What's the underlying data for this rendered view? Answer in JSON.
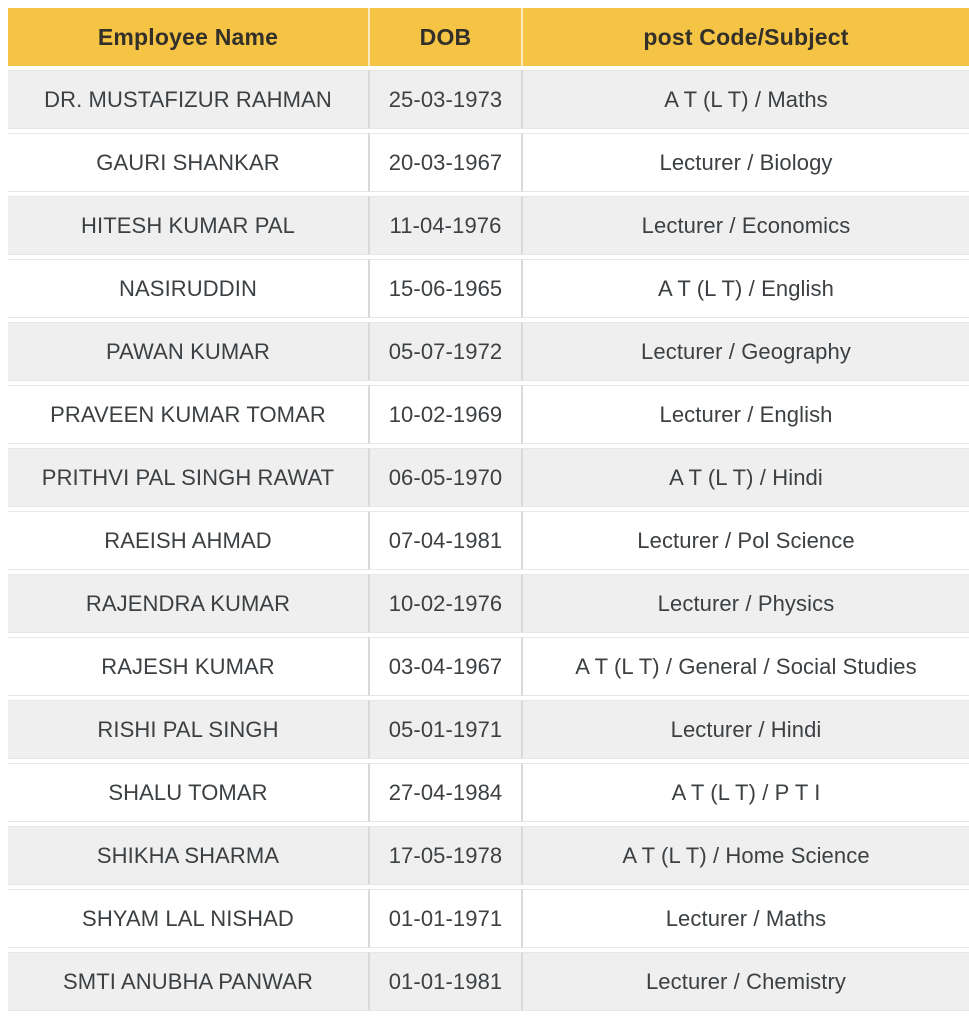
{
  "colors": {
    "header_bg": "#F6C445",
    "header_text": "#33302A",
    "body_text": "#3C4043",
    "row_bg": "#FFFFFF",
    "row_alt_bg": "#EFEFEF",
    "divider": "#D9D9D9"
  },
  "table": {
    "columns": [
      {
        "key": "name",
        "label": "Employee Name"
      },
      {
        "key": "dob",
        "label": "DOB"
      },
      {
        "key": "post",
        "label": "post Code/Subject"
      }
    ],
    "rows": [
      {
        "name": "DR. MUSTAFIZUR RAHMAN",
        "dob": "25-03-1973",
        "post": "A T (L T) / Maths"
      },
      {
        "name": "GAURI SHANKAR",
        "dob": "20-03-1967",
        "post": "Lecturer / Biology"
      },
      {
        "name": "HITESH KUMAR PAL",
        "dob": "11-04-1976",
        "post": "Lecturer / Economics"
      },
      {
        "name": "NASIRUDDIN",
        "dob": "15-06-1965",
        "post": "A T (L T) / English"
      },
      {
        "name": "PAWAN KUMAR",
        "dob": "05-07-1972",
        "post": "Lecturer / Geography"
      },
      {
        "name": "PRAVEEN KUMAR TOMAR",
        "dob": "10-02-1969",
        "post": "Lecturer / English"
      },
      {
        "name": "PRITHVI PAL SINGH RAWAT",
        "dob": "06-05-1970",
        "post": "A T (L T) / Hindi"
      },
      {
        "name": "RAEISH AHMAD",
        "dob": "07-04-1981",
        "post": "Lecturer / Pol Science"
      },
      {
        "name": "RAJENDRA KUMAR",
        "dob": "10-02-1976",
        "post": "Lecturer / Physics"
      },
      {
        "name": "RAJESH KUMAR",
        "dob": "03-04-1967",
        "post": "A T (L T) / General / Social Studies"
      },
      {
        "name": "RISHI PAL SINGH",
        "dob": "05-01-1971",
        "post": "Lecturer / Hindi"
      },
      {
        "name": "SHALU TOMAR",
        "dob": "27-04-1984",
        "post": "A T (L T) / P T I"
      },
      {
        "name": "SHIKHA SHARMA",
        "dob": "17-05-1978",
        "post": "A T (L T) / Home Science"
      },
      {
        "name": "SHYAM LAL NISHAD",
        "dob": "01-01-1971",
        "post": "Lecturer / Maths"
      },
      {
        "name": "SMTI ANUBHA PANWAR",
        "dob": "01-01-1981",
        "post": "Lecturer / Chemistry"
      }
    ]
  }
}
